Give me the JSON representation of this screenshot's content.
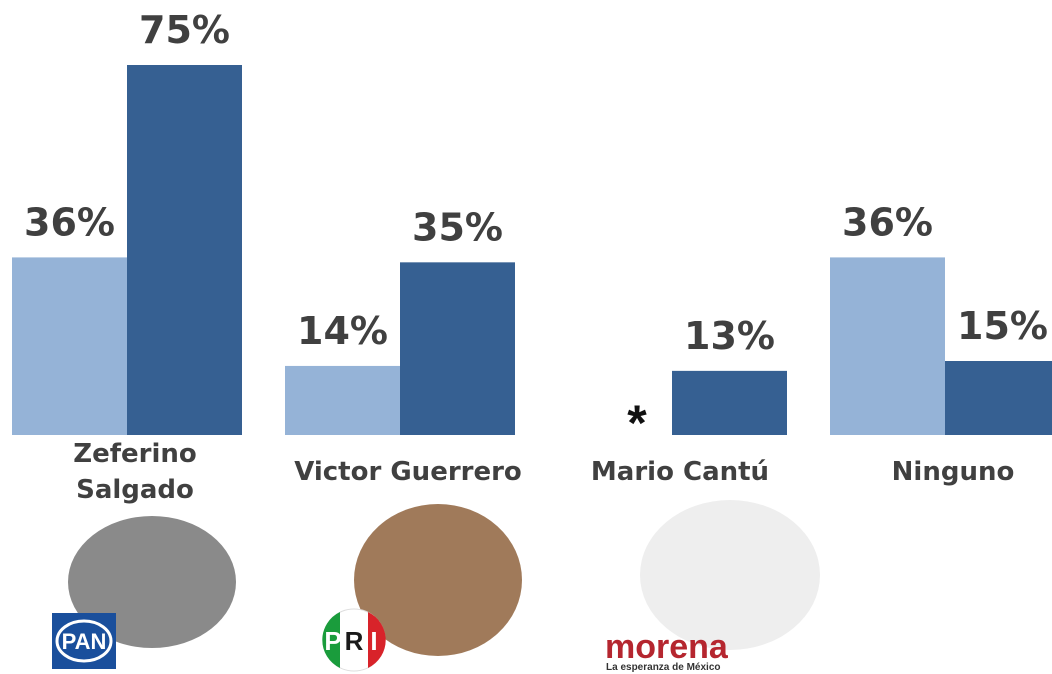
{
  "chart_data": {
    "type": "bar",
    "categories": [
      "Zeferino Salgado",
      "Victor Guerrero",
      "Mario Cantú",
      "Ninguno"
    ],
    "series": [
      {
        "color": "#95b3d7",
        "values": [
          36,
          14,
          null,
          36
        ],
        "value_labels": [
          "36%",
          "14%",
          null,
          "36%"
        ]
      },
      {
        "color": "#366092",
        "values": [
          75,
          35,
          13,
          15
        ],
        "value_labels": [
          "75%",
          "35%",
          "13%",
          "15%"
        ]
      }
    ],
    "ylim": [
      0,
      75
    ],
    "annotations": [
      "*"
    ],
    "logos": [
      "PAN",
      "P",
      "R",
      "I",
      "morena",
      "La esperanza de México"
    ]
  }
}
